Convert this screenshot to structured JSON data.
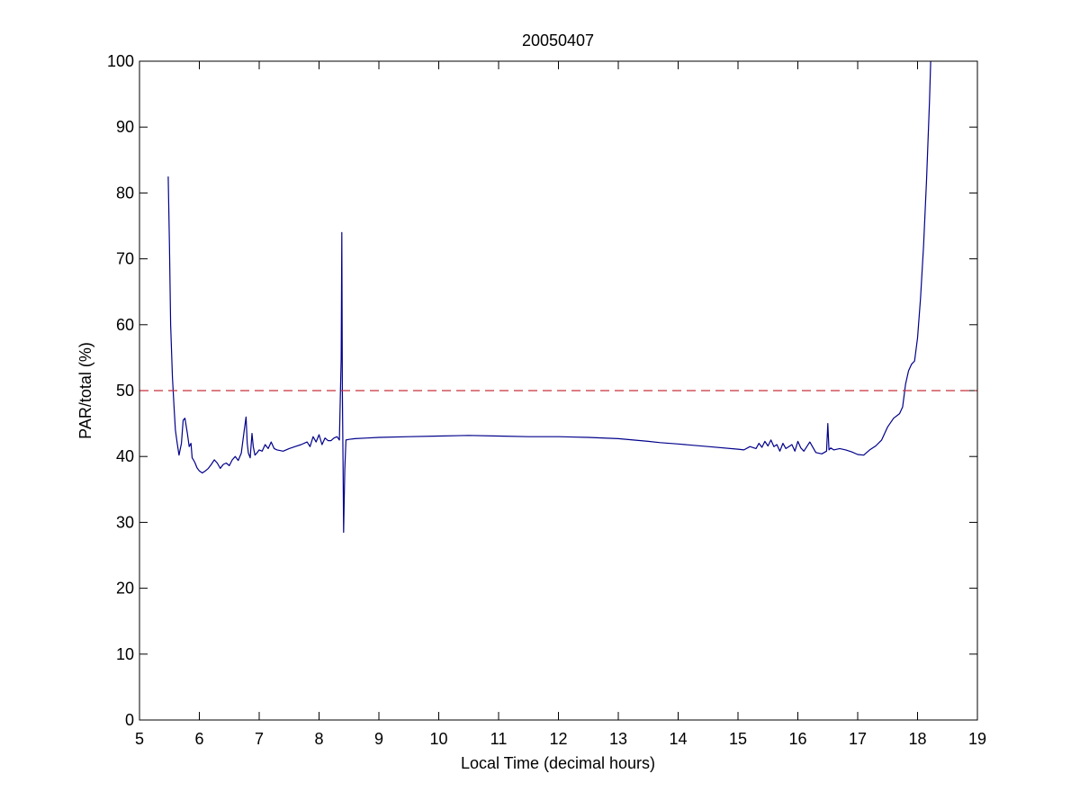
{
  "chart_data": {
    "type": "line",
    "title": "20050407",
    "xlabel": "Local Time (decimal hours)",
    "ylabel": "PAR/total (%)",
    "xlim": [
      5,
      19
    ],
    "ylim": [
      0,
      100
    ],
    "xticks": [
      5,
      6,
      7,
      8,
      9,
      10,
      11,
      12,
      13,
      14,
      15,
      16,
      17,
      18,
      19
    ],
    "yticks": [
      0,
      10,
      20,
      30,
      40,
      50,
      60,
      70,
      80,
      90,
      100
    ],
    "grid": false,
    "series": [
      {
        "color": "#00008b",
        "x": [
          5.48,
          5.5,
          5.52,
          5.55,
          5.58,
          5.6,
          5.63,
          5.66,
          5.7,
          5.73,
          5.76,
          5.8,
          5.83,
          5.86,
          5.88,
          5.9,
          5.93,
          5.96,
          6.0,
          6.05,
          6.1,
          6.15,
          6.2,
          6.25,
          6.3,
          6.35,
          6.4,
          6.45,
          6.5,
          6.55,
          6.6,
          6.65,
          6.7,
          6.75,
          6.78,
          6.8,
          6.82,
          6.85,
          6.88,
          6.9,
          6.93,
          6.96,
          7.0,
          7.05,
          7.1,
          7.15,
          7.2,
          7.25,
          7.3,
          7.4,
          7.5,
          7.6,
          7.7,
          7.8,
          7.85,
          7.9,
          7.95,
          8.0,
          8.05,
          8.1,
          8.15,
          8.2,
          8.25,
          8.3,
          8.34,
          8.37,
          8.38,
          8.39,
          8.4,
          8.41,
          8.42,
          8.43,
          8.45,
          8.5,
          8.6,
          8.8,
          9.0,
          9.5,
          10.0,
          10.5,
          11.0,
          11.5,
          12.0,
          12.5,
          13.0,
          13.5,
          13.7,
          14.0,
          14.5,
          15.0,
          15.1,
          15.2,
          15.3,
          15.35,
          15.4,
          15.45,
          15.5,
          15.55,
          15.6,
          15.65,
          15.7,
          15.75,
          15.8,
          15.85,
          15.9,
          15.95,
          16.0,
          16.05,
          16.1,
          16.15,
          16.2,
          16.3,
          16.4,
          16.48,
          16.5,
          16.52,
          16.55,
          16.6,
          16.7,
          16.8,
          16.9,
          17.0,
          17.1,
          17.2,
          17.3,
          17.4,
          17.5,
          17.6,
          17.7,
          17.75,
          17.8,
          17.85,
          17.9,
          17.95,
          18.0,
          18.05,
          18.1,
          18.15,
          18.2,
          18.22
        ],
        "y": [
          82.5,
          72,
          60,
          52,
          47,
          44,
          42,
          40.2,
          42,
          45.5,
          45.8,
          43.5,
          41.5,
          42,
          39.8,
          39.5,
          39,
          38.3,
          37.8,
          37.5,
          37.8,
          38.2,
          38.8,
          39.5,
          39,
          38.2,
          38.8,
          39,
          38.6,
          39.5,
          40,
          39.4,
          40.5,
          44,
          46,
          42,
          40.5,
          39.8,
          43.5,
          41.5,
          40.2,
          40.5,
          41,
          40.8,
          41.8,
          41.2,
          42.2,
          41.2,
          41,
          40.8,
          41.2,
          41.5,
          41.8,
          42.2,
          41.5,
          43,
          42.2,
          43.3,
          41.8,
          42.8,
          42.4,
          42.4,
          42.8,
          43,
          42.5,
          55,
          74,
          50,
          40,
          28.5,
          33,
          38,
          42.5,
          42.6,
          42.7,
          42.8,
          42.9,
          43,
          43.1,
          43.2,
          43.1,
          43,
          43,
          42.9,
          42.7,
          42.3,
          42.1,
          41.9,
          41.5,
          41.1,
          41,
          41.5,
          41.2,
          42,
          41.4,
          42.3,
          41.6,
          42.5,
          41.5,
          41.8,
          40.8,
          42,
          41.2,
          41.5,
          41.8,
          40.8,
          42.3,
          41.3,
          40.8,
          41.5,
          42.2,
          40.6,
          40.4,
          40.8,
          45,
          41,
          41.3,
          41,
          41.2,
          41,
          40.7,
          40.3,
          40.2,
          41,
          41.6,
          42.5,
          44.5,
          45.8,
          46.5,
          47.5,
          51,
          53,
          54,
          54.5,
          58,
          64,
          72,
          82,
          94,
          100
        ]
      },
      {
        "color": "#c8323c",
        "style": "dashed",
        "x": [
          5,
          19
        ],
        "y": [
          50,
          50
        ]
      }
    ]
  }
}
